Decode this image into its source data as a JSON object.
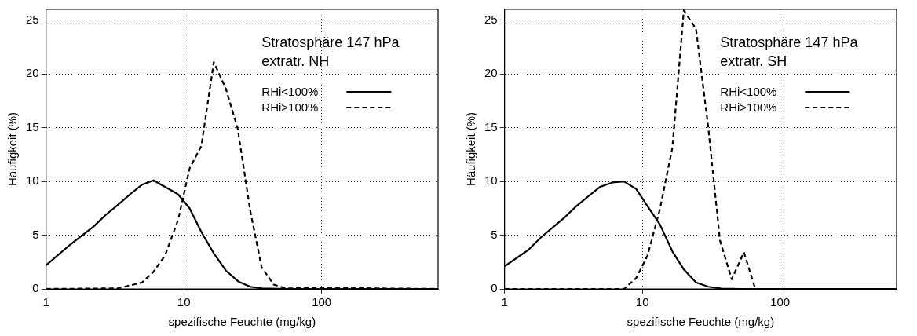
{
  "chart_data": [
    {
      "type": "line",
      "xlabel": "spezifische Feuchte (mg/kg)",
      "ylabel": "Häufigkeit (%)",
      "annotations": [
        "Stratosphäre 147 hPa",
        "extratr. NH"
      ],
      "log": "x",
      "xlim": [
        1,
        700
      ],
      "xticks": [
        1,
        10,
        100
      ],
      "ylim": [
        0,
        26
      ],
      "yticks": [
        0,
        5,
        10,
        15,
        20,
        25
      ],
      "grid": true,
      "legend": "top right",
      "marker": "none",
      "series": [
        {
          "name": "RHi<100%",
          "color": "#000000",
          "line_style": "solid",
          "x": [
            1,
            1.46,
            2.21,
            2.72,
            3.31,
            4.07,
            4.98,
            6.03,
            9.08,
            11.0,
            13.4,
            16.5,
            20.2,
            24.8,
            30.3,
            36.7,
            55,
            700
          ],
          "values": [
            2.2,
            4.0,
            5.8,
            6.9,
            7.8,
            8.8,
            9.7,
            10.1,
            8.8,
            7.5,
            5.3,
            3.3,
            1.7,
            0.7,
            0.2,
            0.05,
            0,
            0
          ]
        },
        {
          "name": "RHi>100%",
          "color": "#000000",
          "line_style": "dashed",
          "x": [
            1,
            3.31,
            4.0,
            4.98,
            6.03,
            7.3,
            9.08,
            11.0,
            13.4,
            16.5,
            20.2,
            24.6,
            30.3,
            36.7,
            44.9,
            55,
            145,
            230,
            700
          ],
          "values": [
            0,
            0.05,
            0.3,
            0.6,
            1.6,
            3.1,
            6.4,
            11.2,
            13.3,
            21.1,
            18.6,
            14.9,
            7.3,
            2.0,
            0.4,
            0.05,
            0.1,
            0.05,
            0
          ]
        }
      ]
    },
    {
      "type": "line",
      "xlabel": "spezifische Feuchte (mg/kg)",
      "ylabel": "Häufigkeit (%)",
      "annotations": [
        "Stratosphäre 147 hPa",
        "extratr. SH"
      ],
      "log": "x",
      "xlim": [
        1,
        700
      ],
      "xticks": [
        1,
        10,
        100
      ],
      "ylim": [
        0,
        26
      ],
      "yticks": [
        0,
        5,
        10,
        15,
        20,
        25
      ],
      "grid": true,
      "legend": "top right",
      "marker": "none",
      "series": [
        {
          "name": "RHi<100%",
          "color": "#000000",
          "line_style": "solid",
          "x": [
            1,
            1.48,
            1.84,
            2.7,
            3.32,
            4.04,
            4.94,
            6.05,
            7.35,
            9.01,
            10.9,
            13.4,
            16.5,
            20.0,
            24.5,
            30.1,
            37.5,
            52,
            700
          ],
          "values": [
            2.1,
            3.6,
            4.8,
            6.6,
            7.7,
            8.6,
            9.5,
            9.9,
            10.0,
            9.3,
            7.7,
            6.0,
            3.5,
            1.8,
            0.6,
            0.2,
            0.03,
            0,
            0
          ]
        },
        {
          "name": "RHi>100%",
          "color": "#000000",
          "line_style": "dashed",
          "x": [
            1,
            7.35,
            9.01,
            10.9,
            13.4,
            16.5,
            20.0,
            24.5,
            30.1,
            36.6,
            44.5,
            54.6,
            66,
            700
          ],
          "values": [
            0,
            0,
            1.0,
            3.1,
            7.4,
            13.1,
            25.9,
            24.2,
            15.0,
            4.5,
            0.9,
            3.4,
            0,
            0
          ]
        }
      ]
    }
  ]
}
